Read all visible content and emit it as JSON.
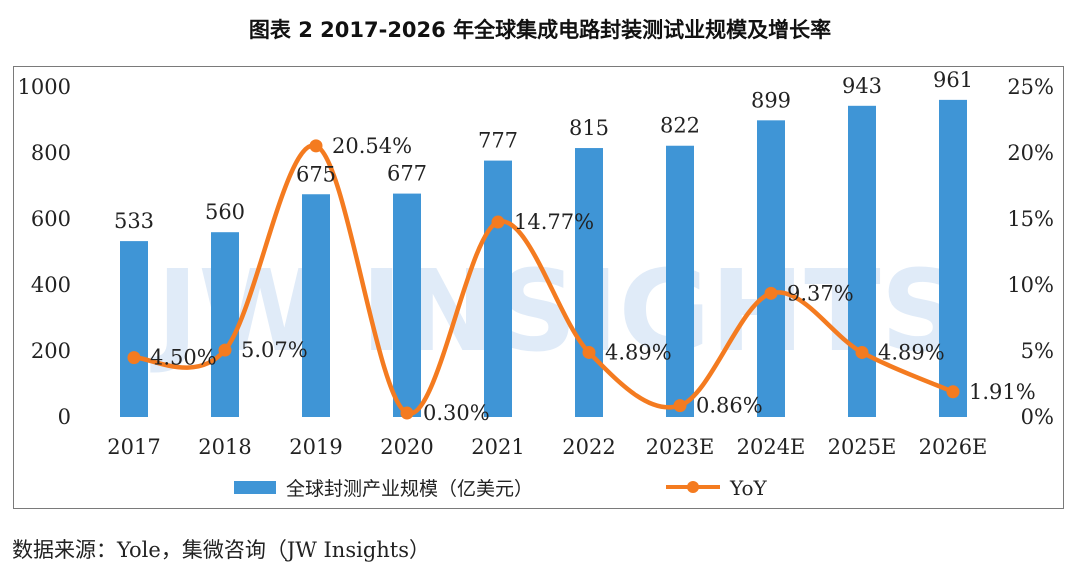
{
  "title": "图表 2 2017-2026 年全球集成电路封装测试业规模及增长率",
  "source": "数据来源：Yole，集微咨询（JW Insights）",
  "watermark": "JW INSIGHTS",
  "colors": {
    "bar": "#3f95d6",
    "line": "#f47b20",
    "watermark": "#4a86d8"
  },
  "chart_data": {
    "type": "bar",
    "categories": [
      "2017",
      "2018",
      "2019",
      "2020",
      "2021",
      "2022",
      "2023E",
      "2024E",
      "2025E",
      "2026E"
    ],
    "series": [
      {
        "name": "全球封测产业规模（亿美元）",
        "type": "bar",
        "axis": "left",
        "values": [
          533,
          560,
          675,
          677,
          777,
          815,
          822,
          899,
          943,
          961
        ],
        "labels": [
          "533",
          "560",
          "675",
          "677",
          "777",
          "815",
          "822",
          "899",
          "943",
          "961"
        ]
      },
      {
        "name": "YoY",
        "type": "line",
        "axis": "right",
        "smooth": true,
        "values": [
          4.5,
          5.07,
          20.54,
          0.3,
          14.77,
          4.89,
          0.86,
          9.37,
          4.89,
          1.91
        ],
        "labels": [
          "4.50%",
          "5.07%",
          "20.54%",
          "0.30%",
          "14.77%",
          "4.89%",
          "0.86%",
          "9.37%",
          "4.89%",
          "1.91%"
        ]
      }
    ],
    "y_left": {
      "min": 0,
      "max": 1000,
      "ticks": [
        "0",
        "200",
        "400",
        "600",
        "800",
        "1000"
      ]
    },
    "y_right": {
      "min": 0,
      "max": 25,
      "ticks": [
        "0%",
        "5%",
        "10%",
        "15%",
        "20%",
        "25%"
      ]
    },
    "grid": false,
    "legend": "bottom-center"
  }
}
